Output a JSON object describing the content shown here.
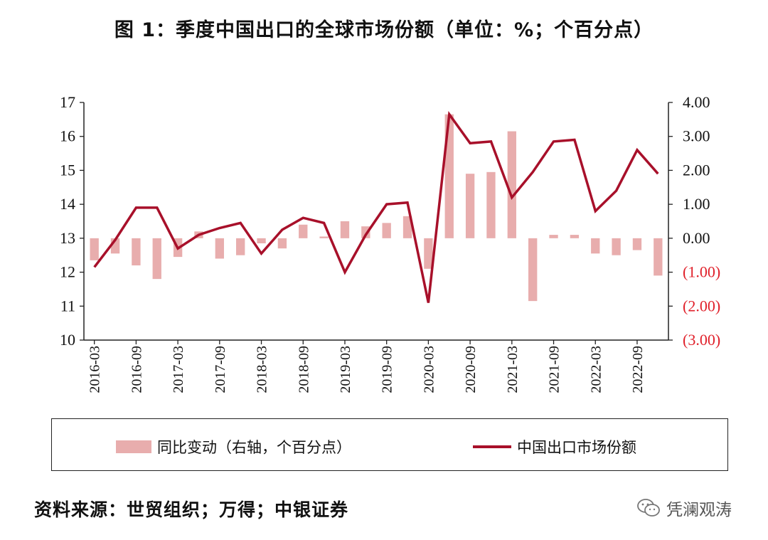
{
  "title": "图 1：季度中国出口的全球市场份额（单位：%；个百分点）",
  "source": "资料来源：世贸组织；万得；中银证券",
  "watermark": {
    "icon": "wechat-icon",
    "text": "凭澜观涛"
  },
  "colors": {
    "bar": "#e8adad",
    "line": "#a8102a",
    "negative_tick": "#e0202a",
    "axis": "#222222"
  },
  "chart_data": {
    "type": "bar+line",
    "categories": [
      "2016-03",
      "2016-06",
      "2016-09",
      "2016-12",
      "2017-03",
      "2017-06",
      "2017-09",
      "2017-12",
      "2018-03",
      "2018-06",
      "2018-09",
      "2018-12",
      "2019-03",
      "2019-06",
      "2019-09",
      "2019-12",
      "2020-03",
      "2020-06",
      "2020-09",
      "2020-12",
      "2021-03",
      "2021-06",
      "2021-09",
      "2021-12",
      "2022-03",
      "2022-06",
      "2022-09",
      "2022-12"
    ],
    "x_tick_labels": [
      "2016-03",
      "2016-09",
      "2017-03",
      "2017-09",
      "2018-03",
      "2018-09",
      "2019-03",
      "2019-09",
      "2020-03",
      "2020-09",
      "2021-03",
      "2021-09",
      "2022-03",
      "2022-09"
    ],
    "series": [
      {
        "name": "同比变动（右轴，个百分点）",
        "type": "bar",
        "axis": "right",
        "values": [
          -0.65,
          -0.45,
          -0.8,
          -1.2,
          -0.55,
          0.2,
          -0.6,
          -0.5,
          -0.15,
          -0.3,
          0.4,
          0.05,
          0.5,
          0.35,
          0.45,
          0.65,
          -0.9,
          3.65,
          1.9,
          1.95,
          3.15,
          -1.85,
          0.1,
          0.1,
          -0.45,
          -0.5,
          -0.35,
          -1.1
        ]
      },
      {
        "name": "中国出口市场份额",
        "type": "line",
        "axis": "left",
        "values": [
          12.15,
          12.95,
          13.9,
          13.9,
          12.7,
          13.1,
          13.3,
          13.45,
          12.55,
          13.25,
          13.6,
          13.45,
          12.0,
          13.1,
          14.0,
          14.05,
          11.1,
          16.65,
          15.8,
          15.85,
          14.2,
          14.95,
          15.85,
          15.9,
          13.8,
          14.4,
          15.6,
          14.9
        ]
      }
    ],
    "y_left": {
      "ylim": [
        10,
        17
      ],
      "ticks": [
        "10",
        "11",
        "12",
        "13",
        "14",
        "15",
        "16",
        "17"
      ]
    },
    "y_right": {
      "ylim": [
        -3,
        4
      ],
      "ticks": [
        "(3.00)",
        "(2.00)",
        "(1.00)",
        "0.00",
        "1.00",
        "2.00",
        "3.00",
        "4.00"
      ]
    },
    "grid": false,
    "legend": {
      "position": "bottom",
      "items": [
        "同比变动（右轴，个百分点）",
        "中国出口市场份额"
      ]
    }
  }
}
